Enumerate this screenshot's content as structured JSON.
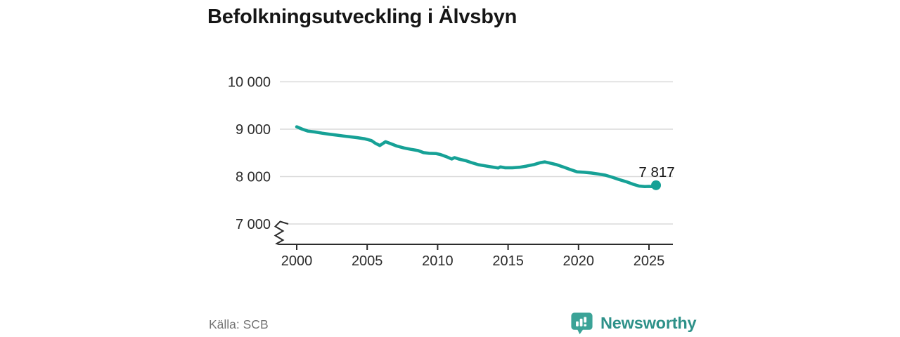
{
  "header": {
    "title": "Befolkningsutveckling i Älvsbyn"
  },
  "footer": {
    "source": "Källa: SCB",
    "brand_name": "Newsworthy",
    "brand_icon": "newsworthy-chart-bubble-icon"
  },
  "colors": {
    "line": "#16a196",
    "grid": "#dadada",
    "axis": "#2b2b2b",
    "tick_text": "#2b2b2b",
    "end_label_text": "#161616",
    "logo_bubble": "#3ba397",
    "brand_text": "#2e9189",
    "source_text": "#757575"
  },
  "chart_data": {
    "type": "line",
    "title": "Befolkningsutveckling i Älvsbyn",
    "series_name": "Befolkning",
    "x": [
      2000.0,
      2000.4,
      2000.8,
      2001.3,
      2001.8,
      2002.3,
      2002.8,
      2003.3,
      2003.8,
      2004.3,
      2004.8,
      2005.3,
      2005.6,
      2005.9,
      2006.3,
      2006.7,
      2007.1,
      2007.6,
      2008.1,
      2008.6,
      2009.0,
      2009.4,
      2009.9,
      2010.2,
      2010.7,
      2011.0,
      2011.2,
      2011.5,
      2012.0,
      2012.4,
      2012.9,
      2013.4,
      2013.9,
      2014.3,
      2014.45,
      2014.8,
      2015.3,
      2015.8,
      2016.3,
      2016.8,
      2017.3,
      2017.6,
      2017.9,
      2018.4,
      2018.9,
      2019.4,
      2019.9,
      2020.4,
      2020.9,
      2021.4,
      2021.9,
      2022.4,
      2022.9,
      2023.4,
      2023.9,
      2024.3,
      2024.7,
      2025.0,
      2025.2,
      2025.5
    ],
    "values": [
      9050,
      9000,
      8960,
      8940,
      8915,
      8895,
      8875,
      8856,
      8838,
      8820,
      8798,
      8760,
      8700,
      8655,
      8735,
      8690,
      8645,
      8605,
      8575,
      8550,
      8505,
      8490,
      8485,
      8465,
      8410,
      8370,
      8400,
      8370,
      8335,
      8295,
      8250,
      8225,
      8200,
      8180,
      8205,
      8185,
      8185,
      8195,
      8220,
      8250,
      8295,
      8310,
      8290,
      8255,
      8205,
      8150,
      8100,
      8090,
      8075,
      8055,
      8030,
      7985,
      7935,
      7890,
      7835,
      7800,
      7790,
      7792,
      7788,
      7817
    ],
    "end_value": 7817,
    "end_label": "7 817",
    "xticks": [
      {
        "value": 2000,
        "label": "2000"
      },
      {
        "value": 2005,
        "label": "2005"
      },
      {
        "value": 2010,
        "label": "2010"
      },
      {
        "value": 2015,
        "label": "2015"
      },
      {
        "value": 2020,
        "label": "2020"
      },
      {
        "value": 2025,
        "label": "2025"
      }
    ],
    "yticks": [
      {
        "value": 7000,
        "label": "7 000"
      },
      {
        "value": 8000,
        "label": "8 000"
      },
      {
        "value": 9000,
        "label": "9 000"
      },
      {
        "value": 10000,
        "label": "10 000"
      }
    ],
    "ylim": [
      7000,
      10000
    ],
    "xlim": [
      1998.8,
      2026.7
    ],
    "grid": true,
    "axis_break": true,
    "legend": "none",
    "source": "Källa: SCB"
  }
}
